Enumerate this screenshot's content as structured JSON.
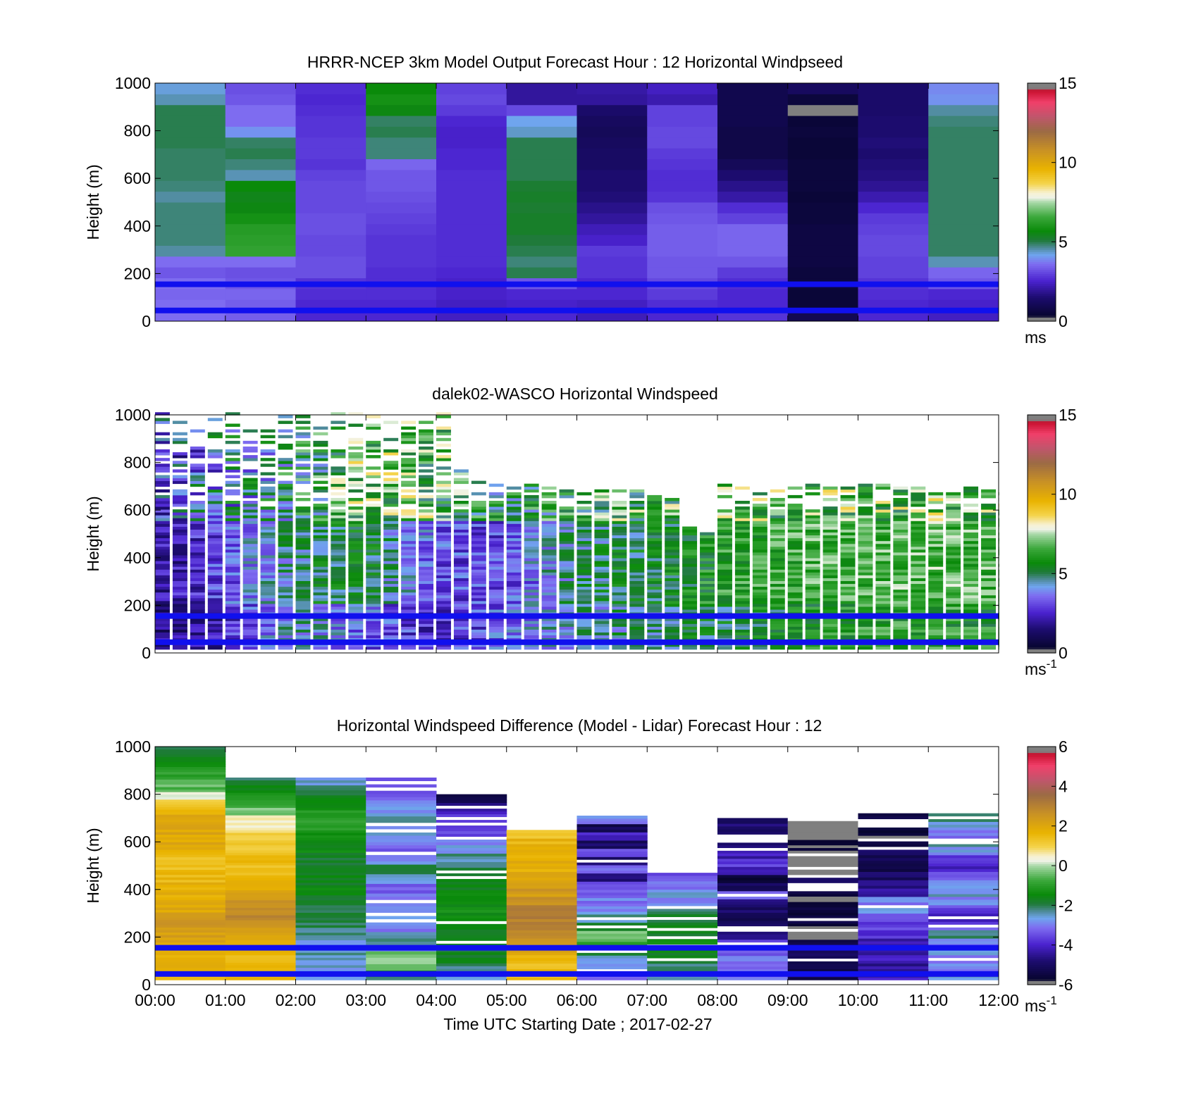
{
  "chart_data": [
    {
      "type": "heatmap",
      "title": "HRRR-NCEP 3km Model Output   Forecast Hour : 12 Horizontal Windpseed",
      "ylabel": "Height (m)",
      "ylim": [
        0,
        1000
      ],
      "yticks": [
        "0",
        "200",
        "400",
        "600",
        "800",
        "1000"
      ],
      "xlim_hours": [
        0,
        12
      ],
      "colorbar": {
        "min": 0,
        "max": 15,
        "ticks": [
          "0",
          "5",
          "10",
          "15"
        ],
        "unit": "ms",
        "unit_sup": ""
      },
      "reference_heights_m": [
        155,
        45
      ],
      "columns_windspeed_ms": [
        [
          3.6,
          3.6,
          3.5,
          3.6,
          3.3,
          3.6,
          4.6,
          4.8,
          4.8,
          4.8,
          4.8,
          4.6,
          4.8,
          4.9,
          4.9,
          4.9,
          5.0,
          5.0,
          5.0,
          5.0,
          4.5,
          4.3
        ],
        [
          3.4,
          3.4,
          3.5,
          3.3,
          3.2,
          3.6,
          6.4,
          6.3,
          6.2,
          5.9,
          5.6,
          5.5,
          5.7,
          4.5,
          4.8,
          5.0,
          4.9,
          4.0,
          3.6,
          3.6,
          3.3,
          3.2
        ],
        [
          2.6,
          2.6,
          2.7,
          2.8,
          3.2,
          3.2,
          3.1,
          3.1,
          3.2,
          3.2,
          3.1,
          3.1,
          3.1,
          3.0,
          2.8,
          2.9,
          2.9,
          2.8,
          2.8,
          2.7,
          2.6,
          2.7
        ],
        [
          2.6,
          2.6,
          2.7,
          2.7,
          2.7,
          2.8,
          2.8,
          2.8,
          2.9,
          3.0,
          3.1,
          3.2,
          3.3,
          3.3,
          3.5,
          4.8,
          4.8,
          5.0,
          4.9,
          5.6,
          5.9,
          5.7
        ],
        [
          2.4,
          2.4,
          2.5,
          2.5,
          2.6,
          2.7,
          2.7,
          2.7,
          2.7,
          2.7,
          2.7,
          2.7,
          2.7,
          2.7,
          2.6,
          2.6,
          2.5,
          2.5,
          2.6,
          2.9,
          3.1,
          3.0
        ],
        [
          2.6,
          2.5,
          2.6,
          3.3,
          5.0,
          4.8,
          5.0,
          5.1,
          5.3,
          5.3,
          5.2,
          5.3,
          5.2,
          5.0,
          5.0,
          5.0,
          5.0,
          4.4,
          4.2,
          3.1,
          2.0,
          2.0
        ],
        [
          2.3,
          2.4,
          2.6,
          2.6,
          2.8,
          2.8,
          2.9,
          2.5,
          2.3,
          2.0,
          1.8,
          1.6,
          1.5,
          1.5,
          1.3,
          1.3,
          1.2,
          1.1,
          1.2,
          1.4,
          2.0,
          2.1
        ],
        [
          2.6,
          2.7,
          2.9,
          3.1,
          3.3,
          3.3,
          3.4,
          3.4,
          3.4,
          3.3,
          3.2,
          2.8,
          2.7,
          2.7,
          2.8,
          2.9,
          3.1,
          3.1,
          3.0,
          3.0,
          2.2,
          2.4
        ],
        [
          2.8,
          2.6,
          2.6,
          2.7,
          2.9,
          3.3,
          3.5,
          3.5,
          3.5,
          3.0,
          2.7,
          2.1,
          1.8,
          1.5,
          1.1,
          0.8,
          0.8,
          0.8,
          0.9,
          0.9,
          0.9,
          0.9
        ],
        [
          1.0,
          0.5,
          0.5,
          0.6,
          0.6,
          0.7,
          0.7,
          0.7,
          0.7,
          0.6,
          0.6,
          0.5,
          0.6,
          0.6,
          0.6,
          0.5,
          0.5,
          0.6,
          0.5,
          0.2,
          0.6,
          1.2
        ],
        [
          2.6,
          2.6,
          2.7,
          2.8,
          3.0,
          3.0,
          3.1,
          3.1,
          3.0,
          2.9,
          2.6,
          2.2,
          1.9,
          1.7,
          1.6,
          1.5,
          1.6,
          1.5,
          1.5,
          1.4,
          1.4,
          1.4
        ],
        [
          2.4,
          2.5,
          2.6,
          3.3,
          3.5,
          4.5,
          4.9,
          4.9,
          4.9,
          4.9,
          4.9,
          4.9,
          4.9,
          4.9,
          4.9,
          4.9,
          4.9,
          4.9,
          4.8,
          4.6,
          4.0,
          3.9
        ]
      ]
    },
    {
      "type": "heatmap",
      "title": "dalek02-WASCO  Horizontal Windspeed",
      "ylabel": "Height (m)",
      "ylim": [
        0,
        1000
      ],
      "yticks": [
        "0",
        "200",
        "400",
        "600",
        "800",
        "1000"
      ],
      "xlim_hours": [
        0,
        12
      ],
      "colorbar": {
        "min": 0,
        "max": 15,
        "ticks": [
          "0",
          "5",
          "10",
          "15"
        ],
        "unit": "ms",
        "unit_sup": "-1"
      },
      "reference_heights_m": [
        155,
        45
      ],
      "time_bin_hours": 0.25,
      "max_height_m_per_bin": [
        1000,
        1000,
        1000,
        1000,
        1000,
        1000,
        950,
        1000,
        1000,
        1000,
        1000,
        1000,
        1000,
        1000,
        1000,
        1000,
        1000,
        760,
        740,
        720,
        700,
        700,
        690,
        680,
        680,
        680,
        680,
        680,
        660,
        640,
        530,
        500,
        700,
        700,
        690,
        690,
        690,
        700,
        700,
        700,
        700,
        700,
        700,
        690,
        690,
        690,
        690,
        680,
        670
      ],
      "speed_profile_ms": {
        "hours": [
          0,
          0.5,
          1,
          2,
          3,
          4,
          5,
          6,
          7,
          8,
          9,
          10,
          11,
          12
        ],
        "low_level": [
          1.5,
          1.8,
          2.5,
          4.5,
          3.5,
          2.6,
          3.4,
          4.4,
          4.8,
          5.2,
          5.6,
          6.0,
          6.2,
          6.0
        ],
        "mid_level": [
          2.0,
          2.4,
          3.2,
          4.8,
          5.5,
          3.2,
          3.0,
          4.8,
          5.2,
          6.0,
          6.5,
          6.6,
          6.8,
          6.6
        ],
        "upper_level": [
          3.0,
          3.4,
          4.2,
          5.2,
          7.0,
          6.5,
          5.5,
          6.0,
          6.5,
          6.6,
          6.8,
          6.8,
          6.8,
          6.8
        ]
      }
    },
    {
      "type": "heatmap",
      "title": "Horizontal Windspeed Difference (Model - Lidar) Forecast Hour : 12",
      "ylabel": "Height (m)",
      "xlabel": "Time UTC  Starting Date ; 2017-02-27",
      "ylim": [
        0,
        1000
      ],
      "yticks": [
        "0",
        "200",
        "400",
        "600",
        "800",
        "1000"
      ],
      "xticks": [
        "00:00",
        "01:00",
        "02:00",
        "03:00",
        "04:00",
        "05:00",
        "06:00",
        "07:00",
        "08:00",
        "09:00",
        "10:00",
        "11:00",
        "12:00"
      ],
      "colorbar": {
        "min": -6,
        "max": 6,
        "ticks": [
          "-6",
          "-4",
          "-2",
          "0",
          "2",
          "4",
          "6"
        ],
        "unit": "ms",
        "unit_sup": "-1"
      },
      "reference_heights_m": [
        155,
        45
      ],
      "column_top_m": [
        1000,
        870,
        870,
        870,
        800,
        650,
        710,
        470,
        700,
        700,
        720,
        720
      ],
      "column_mean_difference_ms": [
        [
          1.7,
          1.7,
          1.6,
          1.8,
          2.0,
          2.2,
          2.3,
          2.4,
          2.2,
          2.0,
          1.9,
          1.8,
          1.7,
          1.6,
          1.5,
          1.4,
          1.5,
          1.8,
          2.0,
          2.0,
          2.1,
          2.2,
          1.5,
          1.0,
          0.4,
          -0.5,
          -0.8,
          -1.0,
          -1.2,
          -1.5,
          -1.8
        ],
        [
          1.5,
          1.4,
          1.6,
          1.6,
          1.8,
          2.0,
          2.3,
          2.6,
          2.8,
          2.7,
          2.5,
          2.2,
          2.0,
          1.8,
          1.6,
          1.5,
          1.4,
          1.3,
          1.2,
          1.0,
          0.6,
          0.4,
          -0.3,
          -0.8,
          -1.2,
          -1.6,
          -2.0
        ],
        [
          -2.4,
          -2.6,
          -2.6,
          -2.4,
          -2.8,
          -2.5,
          -2.2,
          -2.0,
          -1.8,
          -1.8,
          -1.8,
          -1.6,
          -1.6,
          -1.5,
          -1.6,
          -1.7,
          -1.8,
          -1.5,
          -1.4,
          -1.2,
          -1.0,
          -1.0,
          -1.2,
          -1.4,
          -1.7,
          -2.2,
          -2.5
        ],
        [
          -2.0,
          -0.2,
          -0.3,
          -2.6,
          -2.2,
          -3.0,
          -2.4,
          -2.8,
          -3.0,
          -3.2,
          -2.5,
          -2.0,
          -3.0,
          -3.4,
          -3.0,
          -2.6,
          -2.2,
          -2.8,
          -3.0,
          -3.6,
          -3.2
        ],
        [
          -2.6,
          -2.2,
          -1.8,
          -1.7,
          -1.6,
          -1.5,
          -1.5,
          -1.4,
          -1.4,
          -1.4,
          -1.5,
          -1.6,
          -1.7,
          -2.0,
          -2.3,
          -2.6,
          -3.0,
          -3.4,
          -3.6,
          -3.8,
          -4.6,
          -5.2
        ],
        [
          1.4,
          1.4,
          1.6,
          2.0,
          2.4,
          2.8,
          3.0,
          3.1,
          3.0,
          2.6,
          2.4,
          2.2,
          2.0,
          1.8,
          1.8,
          1.7,
          1.6,
          1.4
        ],
        [
          -3.2,
          -3.0,
          -2.6,
          -1.8,
          -0.8,
          -0.4,
          -1.6,
          -2.4,
          -2.8,
          -3.0,
          -3.2,
          -3.4,
          -4.6,
          -3.0,
          -4.8,
          -3.6,
          -5.0,
          -4.0,
          -5.2,
          -3.0
        ],
        [
          -2.4,
          -2.2,
          -1.8,
          -1.6,
          -1.4,
          -1.6,
          -1.8,
          -1.8,
          -2.2,
          -2.8,
          -2.6,
          -3.0,
          -3.4
        ],
        [
          -3.2,
          -3.0,
          -3.0,
          -3.2,
          -3.4,
          -4.6,
          -4.8,
          -5.2,
          -5.0,
          -4.6,
          -3.2,
          -5.0,
          -5.6,
          -4.2,
          -3.6,
          -4.2,
          -4.8,
          -5.0,
          -5.2,
          -4.8
        ],
        [
          -5.2,
          -5.4,
          -5.2,
          -5.0,
          -5.4,
          -6.0,
          -5.8,
          -5.4,
          -5.6,
          -5.8,
          -5.6,
          -5.4,
          -5.2,
          -6.0,
          -6.0,
          -6.0,
          -5.8,
          -6.0,
          -6.0,
          -6.0
        ],
        [
          -4.2,
          -4.4,
          -4.0,
          -4.6,
          -4.2,
          -3.8,
          -3.6,
          -3.2,
          -2.8,
          -3.0,
          -4.2,
          -4.6,
          -5.0,
          -5.4,
          -5.2,
          -5.0,
          -5.6,
          -5.8,
          -5.6,
          -5.4
        ],
        [
          -2.4,
          -2.8,
          -3.0,
          -2.4,
          -3.0,
          -2.2,
          -3.4,
          -4.0,
          -3.6,
          -3.0,
          -2.6,
          -2.8,
          -3.2,
          -4.0,
          -3.6,
          -2.8,
          -2.4,
          -3.0,
          -2.6,
          -2.2
        ]
      ]
    }
  ]
}
